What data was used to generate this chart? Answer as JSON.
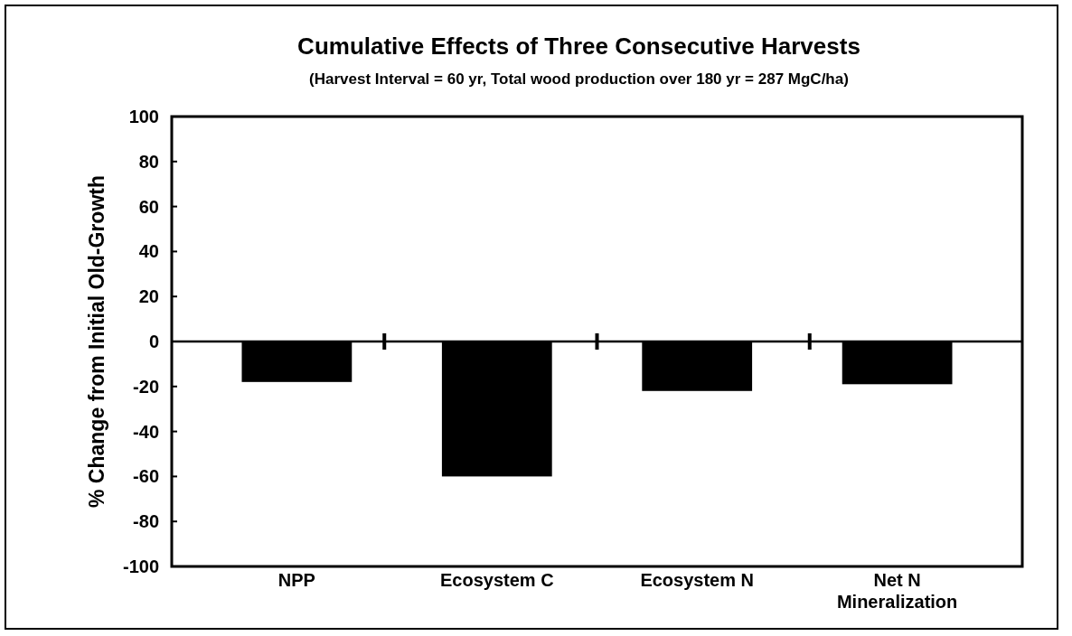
{
  "chart_data": {
    "type": "bar",
    "title": "Cumulative Effects of Three Consecutive Harvests",
    "subtitle": "(Harvest Interval = 60 yr, Total wood production over 180 yr = 287 MgC/ha)",
    "ylabel": "% Change from Initial Old-Growth",
    "categories": [
      "NPP",
      "Ecosystem C",
      "Ecosystem N",
      "Net N Mineralization"
    ],
    "values": [
      -18,
      -60,
      -22,
      -19
    ],
    "color": "#000000",
    "ylim": [
      -100,
      100
    ],
    "yticks": [
      100,
      80,
      60,
      40,
      20,
      0,
      -20,
      -40,
      -60,
      -80,
      -100
    ]
  }
}
